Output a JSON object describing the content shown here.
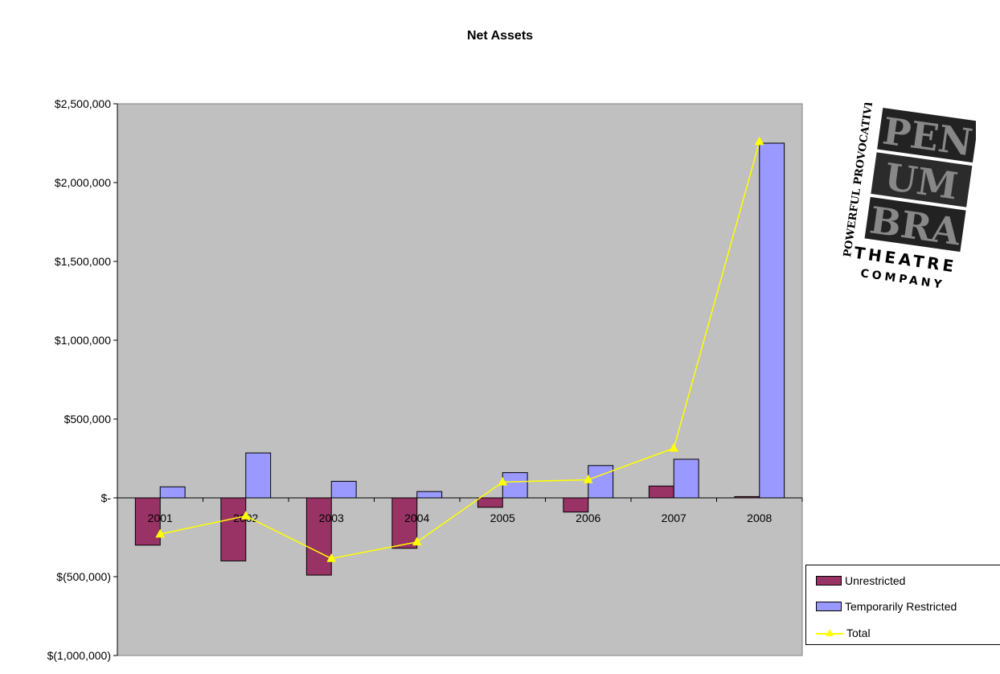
{
  "chart_data": {
    "type": "bar",
    "title": "Net Assets",
    "categories": [
      "2001",
      "2002",
      "2003",
      "2004",
      "2005",
      "2006",
      "2007",
      "2008"
    ],
    "series": [
      {
        "name": "Unrestricted",
        "type": "bar",
        "color": "#993366",
        "values": [
          -300000,
          -400000,
          -490000,
          -320000,
          -60000,
          -90000,
          75000,
          8000
        ]
      },
      {
        "name": "Temporarily Restricted",
        "type": "bar",
        "color": "#9999ff",
        "values": [
          70000,
          285000,
          105000,
          40000,
          160000,
          205000,
          245000,
          2250000
        ]
      },
      {
        "name": "Total",
        "type": "line",
        "color": "#ffff00",
        "marker": "triangle",
        "values": [
          -230000,
          -115000,
          -385000,
          -280000,
          100000,
          115000,
          315000,
          2260000
        ]
      }
    ],
    "ylim": [
      -1000000,
      2500000
    ],
    "yticks": [
      -1000000,
      -500000,
      0,
      500000,
      1000000,
      1500000,
      2000000,
      2500000
    ],
    "ytick_labels": [
      "$(1,000,000)",
      "$(500,000)",
      "$-",
      "$500,000",
      "$1,000,000",
      "$1,500,000",
      "$2,000,000",
      "$2,500,000"
    ],
    "plot_background": "#c0c0c0",
    "grid": false,
    "legend_position": "bottom-right"
  },
  "legend": {
    "items": [
      "Unrestricted",
      "Temporarily Restricted",
      "Total"
    ]
  },
  "logo": {
    "lines": [
      "PEN",
      "UM",
      "BRA",
      "THEATRE",
      "COMPANY",
      "POWERFUL PROVOCATIVE"
    ]
  }
}
